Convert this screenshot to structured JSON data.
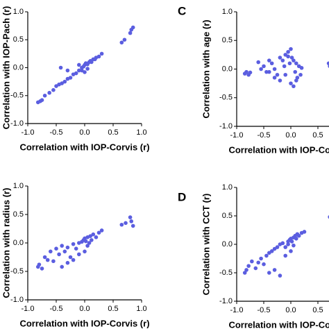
{
  "chart_data": [
    {
      "type": "scatter",
      "x_label": "Correlation with IOP-Corvis (r)",
      "y_label": "Correlation with IOP-Pach (r)",
      "color": "#5b5ee0",
      "xlim": [
        -1,
        1
      ],
      "ylim": [
        -1,
        1
      ],
      "xticks": [
        {
          "value": -1,
          "label": "-1.0"
        },
        -0.5,
        {
          "value": 0,
          "label": "0.0"
        },
        0.5,
        {
          "value": 1,
          "label": "1.0"
        }
      ],
      "yticks": [
        {
          "value": -1,
          "label": "-1.0"
        },
        -0.5,
        {
          "value": 0,
          "label": "0.0"
        },
        0.5,
        {
          "value": 1,
          "label": "1.0"
        }
      ],
      "x": [
        -0.82,
        -0.78,
        -0.75,
        -0.7,
        -0.62,
        -0.55,
        -0.5,
        -0.45,
        -0.4,
        -0.35,
        -0.3,
        -0.25,
        -0.2,
        -0.15,
        -0.1,
        -0.05,
        -0.02,
        0.0,
        0.02,
        0.05,
        0.08,
        0.1,
        0.12,
        0.15,
        0.18,
        0.2,
        0.25,
        0.3,
        -0.05,
        0.05,
        0.0,
        -0.1,
        0.65,
        0.7,
        0.8,
        0.85,
        0.82,
        -0.3,
        -0.42
      ],
      "values": [
        -0.62,
        -0.6,
        -0.58,
        -0.5,
        -0.45,
        -0.4,
        -0.33,
        -0.3,
        -0.28,
        -0.25,
        -0.2,
        -0.18,
        -0.12,
        -0.1,
        -0.05,
        0.0,
        0.02,
        0.05,
        0.08,
        0.06,
        0.1,
        0.12,
        0.1,
        0.15,
        0.15,
        0.18,
        0.2,
        0.25,
        -0.05,
        -0.02,
        -0.08,
        0.05,
        0.45,
        0.5,
        0.62,
        0.72,
        0.68,
        -0.05,
        0.0
      ]
    },
    {
      "type": "scatter",
      "x_label": "Correlation with IOP-Corvis (r)",
      "y_label": "Correlation with radius (r)",
      "color": "#5b5ee0",
      "xlim": [
        -1,
        1
      ],
      "ylim": [
        -1,
        1
      ],
      "xticks": [
        {
          "value": -1,
          "label": "-1.0"
        },
        -0.5,
        {
          "value": 0,
          "label": "0.0"
        },
        0.5,
        {
          "value": 1,
          "label": "1.0"
        }
      ],
      "yticks": [
        {
          "value": -1,
          "label": "-1.0"
        },
        -0.5,
        {
          "value": 0,
          "label": "0.0"
        },
        0.5,
        {
          "value": 1,
          "label": "1.0"
        }
      ],
      "x": [
        -0.82,
        -0.8,
        -0.75,
        -0.7,
        -0.65,
        -0.6,
        -0.55,
        -0.5,
        -0.45,
        -0.4,
        -0.35,
        -0.3,
        -0.25,
        -0.2,
        -0.15,
        -0.1,
        -0.05,
        -0.02,
        0.0,
        0.02,
        0.05,
        0.08,
        0.1,
        0.12,
        0.15,
        0.2,
        0.25,
        0.3,
        -0.3,
        -0.4,
        -0.2,
        -0.1,
        0.0,
        0.05,
        0.65,
        0.72,
        0.8,
        0.82,
        0.85
      ],
      "values": [
        -0.42,
        -0.38,
        -0.45,
        -0.25,
        -0.3,
        -0.15,
        -0.32,
        -0.1,
        -0.2,
        -0.05,
        -0.15,
        -0.08,
        -0.25,
        -0.02,
        -0.1,
        0.0,
        0.02,
        0.05,
        0.08,
        0.03,
        0.1,
        0.0,
        0.12,
        0.05,
        0.15,
        0.1,
        0.18,
        0.22,
        -0.35,
        -0.42,
        -0.3,
        -0.2,
        -0.15,
        -0.05,
        0.32,
        0.35,
        0.45,
        0.38,
        0.3
      ]
    },
    {
      "type": "scatter",
      "panel_letter": "C",
      "x_label": "Correlation with IOP-Corvis (r)",
      "y_label": "Correlation with age (r)",
      "color": "#5b5ee0",
      "xlim": [
        -1,
        1
      ],
      "ylim": [
        -1,
        1
      ],
      "xticks": [
        {
          "value": -1,
          "label": "-1.0"
        },
        -0.5,
        {
          "value": 0,
          "label": "0.0"
        },
        0.5
      ],
      "yticks": [
        {
          "value": -1,
          "label": "-1.0"
        },
        -0.5,
        {
          "value": 0,
          "label": "0.0"
        },
        0.5,
        {
          "value": 1,
          "label": "1.0"
        }
      ],
      "x": [
        -0.85,
        -0.82,
        -0.78,
        -0.75,
        -0.6,
        -0.55,
        -0.5,
        -0.45,
        -0.4,
        -0.35,
        -0.3,
        -0.25,
        -0.2,
        -0.15,
        -0.12,
        -0.1,
        -0.05,
        -0.02,
        0.0,
        0.02,
        0.05,
        0.08,
        0.1,
        0.12,
        0.15,
        0.18,
        0.2,
        -0.3,
        -0.4,
        -0.2,
        -0.1,
        0.0,
        0.05,
        0.1,
        -0.05,
        0.7,
        0.72
      ],
      "values": [
        -0.08,
        -0.05,
        -0.1,
        -0.06,
        0.12,
        0.0,
        0.05,
        -0.05,
        0.15,
        0.1,
        0.0,
        -0.1,
        0.2,
        0.15,
        0.05,
        0.25,
        0.3,
        0.1,
        0.35,
        0.2,
        0.15,
        -0.05,
        0.1,
        -0.15,
        0.05,
        -0.1,
        0.02,
        -0.15,
        -0.05,
        -0.2,
        -0.1,
        -0.25,
        -0.3,
        -0.2,
        0.22,
        0.1,
        0.05
      ]
    },
    {
      "type": "scatter",
      "panel_letter": "D",
      "x_label": "Correlation with IOP-Corvis (r)",
      "y_label": "Correlation with CCT (r)",
      "color": "#5b5ee0",
      "xlim": [
        -1,
        1
      ],
      "ylim": [
        -1,
        1
      ],
      "xticks": [
        {
          "value": -1,
          "label": "-1.0"
        },
        -0.5,
        {
          "value": 0,
          "label": "0.0"
        },
        0.5
      ],
      "yticks": [
        {
          "value": -1,
          "label": "-1.0"
        },
        -0.5,
        {
          "value": 0,
          "label": "0.0"
        },
        0.5,
        {
          "value": 1,
          "label": "1.0"
        }
      ],
      "x": [
        -0.85,
        -0.82,
        -0.78,
        -0.72,
        -0.65,
        -0.6,
        -0.55,
        -0.5,
        -0.45,
        -0.4,
        -0.35,
        -0.3,
        -0.25,
        -0.2,
        -0.15,
        -0.1,
        -0.05,
        -0.02,
        0.0,
        0.02,
        0.05,
        0.08,
        0.1,
        0.12,
        0.15,
        0.2,
        0.25,
        -0.3,
        -0.4,
        -0.2,
        -0.1,
        0.0,
        0.05,
        -0.05,
        0.72,
        0.75
      ],
      "values": [
        -0.5,
        -0.45,
        -0.38,
        -0.3,
        -0.42,
        -0.32,
        -0.25,
        -0.35,
        -0.2,
        -0.15,
        -0.12,
        -0.08,
        -0.05,
        0.0,
        0.02,
        -0.05,
        0.05,
        0.08,
        0.1,
        0.05,
        0.12,
        0.15,
        0.1,
        0.18,
        0.15,
        0.2,
        0.22,
        -0.45,
        -0.5,
        -0.55,
        -0.2,
        -0.12,
        -0.02,
        0.0,
        0.48,
        0.46
      ]
    }
  ]
}
